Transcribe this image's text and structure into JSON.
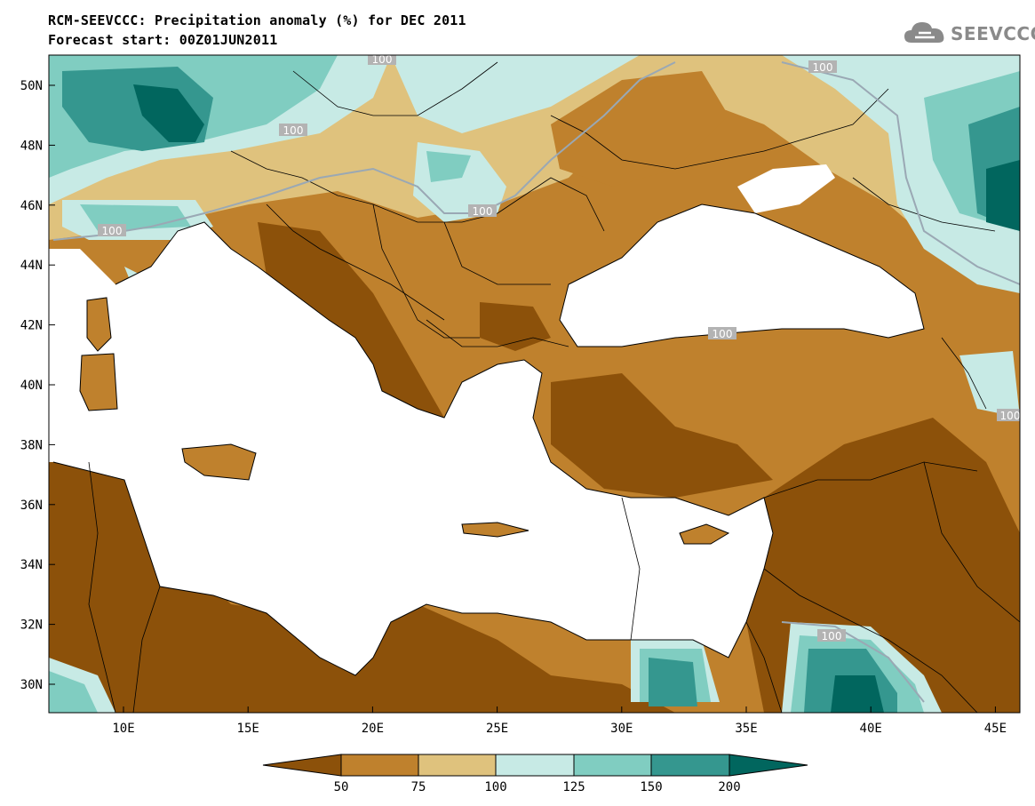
{
  "header": {
    "title": "RCM-SEEVCCC: Precipitation anomaly (%) for DEC 2011",
    "subtitle": "Forecast start: 00Z01JUN2011"
  },
  "logo": {
    "text": "SEEVCCC",
    "icon": "cloud-icon"
  },
  "map": {
    "lat_labels": [
      "50N",
      "48N",
      "46N",
      "44N",
      "42N",
      "40N",
      "38N",
      "36N",
      "34N",
      "32N",
      "30N"
    ],
    "lon_labels": [
      "10E",
      "15E",
      "20E",
      "25E",
      "30E",
      "35E",
      "40E",
      "45E"
    ],
    "contour_label": "100",
    "colors": {
      "sea": "#ffffff",
      "lt50": "#8c510a",
      "50_75": "#bf812d",
      "75_100": "#dfc27d",
      "100_125": "#c7eae5",
      "125_150": "#80cdc1",
      "150_200": "#35978f",
      "gt200": "#01665e"
    }
  },
  "colorbar": {
    "labels": [
      "50",
      "75",
      "100",
      "125",
      "150",
      "200"
    ]
  }
}
